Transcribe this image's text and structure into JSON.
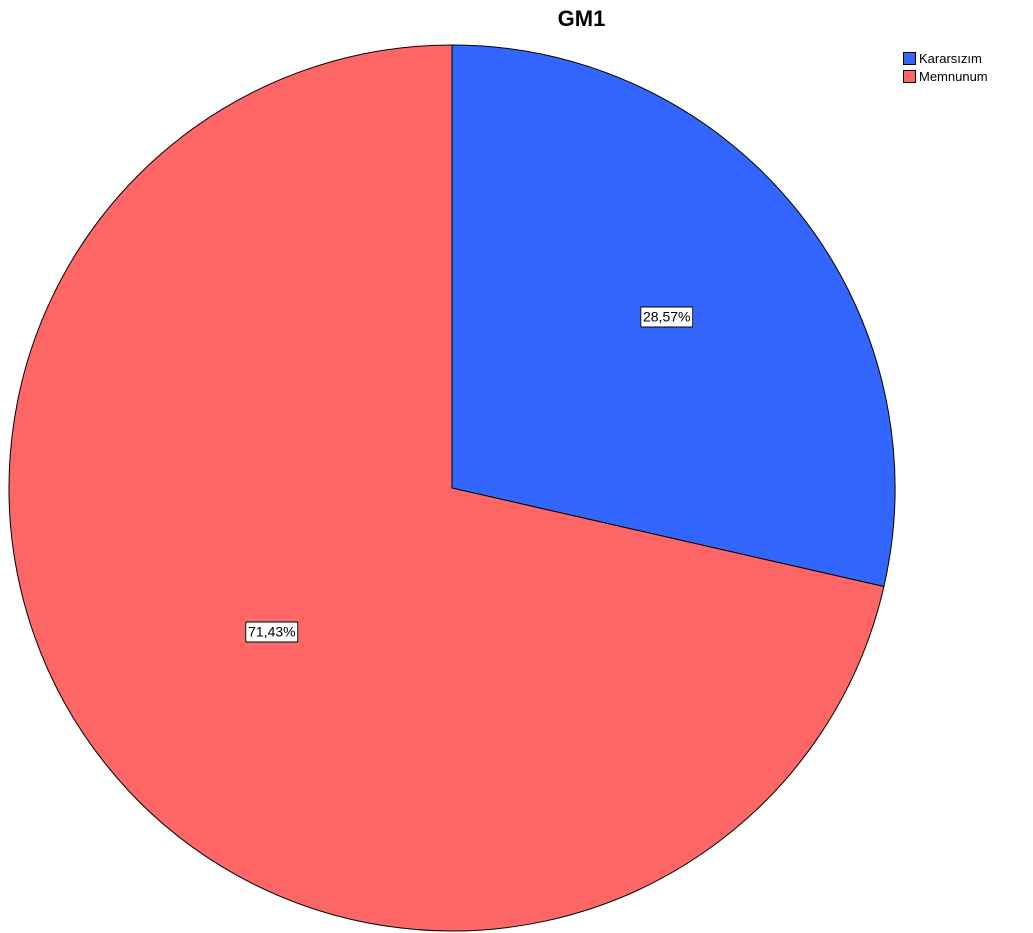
{
  "chart_data": {
    "type": "pie",
    "title": "GM1",
    "categories": [
      "Kararsızım",
      "Memnunum"
    ],
    "values": [
      28.57,
      71.43
    ],
    "labels": [
      "28,57%",
      "71,43%"
    ],
    "colors": [
      "#3366ff",
      "#ff6666"
    ],
    "legend": {
      "placement": "top-right",
      "entries": [
        "Kararsızım",
        "Memnunum"
      ]
    },
    "start_angle": "12 o'clock",
    "direction": "clockwise"
  }
}
